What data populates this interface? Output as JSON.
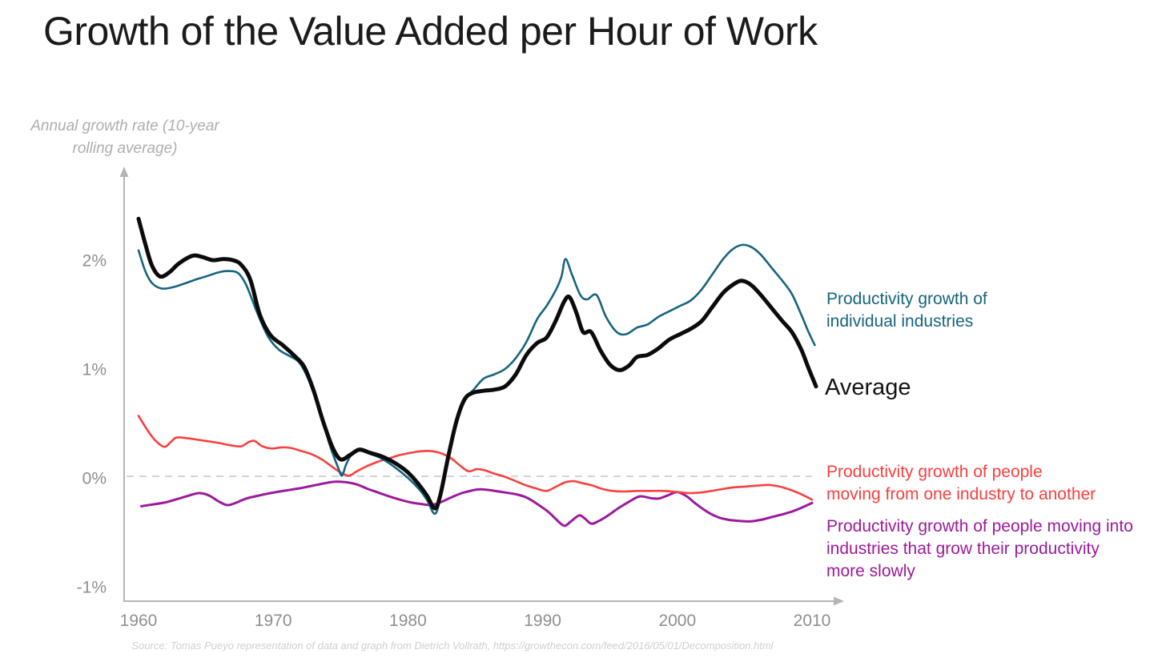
{
  "title": "Growth of the Value Added per Hour of Work",
  "y_axis_label": {
    "line1": "Annual growth rate (10-year",
    "line2": "rolling average)"
  },
  "legend": {
    "industries": {
      "line1": "Productivity growth of",
      "line2": "individual industries",
      "color": "#16647E"
    },
    "average": {
      "label": "Average",
      "color": "#141414"
    },
    "between_industries": {
      "line1": "Productivity growth of people",
      "line2": "moving from one industry to another",
      "color": "#F8403F"
    },
    "slower_industries": {
      "line1": "Productivity growth of people moving into",
      "line2": "industries that grow their productivity",
      "line3": "more slowly",
      "color": "#9C1A9C"
    }
  },
  "source": "Source: Tomas Pueyo representation of data and graph from Dietrich Vollrath, https://growthecon.com/feed/2016/05/01/Decomposition.html",
  "chart_data": {
    "type": "line",
    "title": "Growth of the Value Added per Hour of Work",
    "xlabel": "",
    "ylabel": "Annual growth rate (10-year rolling average)",
    "xlim": [
      1959,
      2012.5
    ],
    "ylim": [
      -1.15,
      2.85
    ],
    "grid": false,
    "zero_line_dashed": true,
    "legend_position": "right-of-line-ends",
    "axis_color": "#b5b5b5",
    "tick_color": "#8f8f8f",
    "x_ticks": [
      1960,
      1970,
      1980,
      1990,
      2000,
      2010
    ],
    "y_ticks": [
      {
        "value": 2,
        "label": "2%"
      },
      {
        "value": 1,
        "label": "1%"
      },
      {
        "value": 0,
        "label": "0%"
      },
      {
        "value": -1,
        "label": "-1%"
      }
    ],
    "series": [
      {
        "name": "Productivity growth of people moving into industries that grow their productivity more slowly",
        "color": "#9C1A9C",
        "width": 3,
        "points": [
          [
            1960.2,
            -0.26
          ],
          [
            1961,
            -0.245
          ],
          [
            1962,
            -0.225
          ],
          [
            1963,
            -0.19
          ],
          [
            1963.8,
            -0.16
          ],
          [
            1964.5,
            -0.14
          ],
          [
            1965.2,
            -0.16
          ],
          [
            1966,
            -0.22
          ],
          [
            1966.6,
            -0.25
          ],
          [
            1967.2,
            -0.23
          ],
          [
            1968,
            -0.19
          ],
          [
            1969,
            -0.16
          ],
          [
            1970,
            -0.135
          ],
          [
            1971,
            -0.115
          ],
          [
            1972,
            -0.095
          ],
          [
            1973,
            -0.07
          ],
          [
            1973.8,
            -0.05
          ],
          [
            1974.6,
            -0.035
          ],
          [
            1975.4,
            -0.04
          ],
          [
            1976.2,
            -0.06
          ],
          [
            1977,
            -0.1
          ],
          [
            1977.8,
            -0.135
          ],
          [
            1978.6,
            -0.17
          ],
          [
            1979.4,
            -0.2
          ],
          [
            1980.2,
            -0.225
          ],
          [
            1981,
            -0.24
          ],
          [
            1981.7,
            -0.25
          ],
          [
            1982.4,
            -0.225
          ],
          [
            1983.2,
            -0.18
          ],
          [
            1984,
            -0.14
          ],
          [
            1984.8,
            -0.115
          ],
          [
            1985.4,
            -0.105
          ],
          [
            1986.2,
            -0.115
          ],
          [
            1987,
            -0.13
          ],
          [
            1988,
            -0.15
          ],
          [
            1988.8,
            -0.18
          ],
          [
            1989.6,
            -0.24
          ],
          [
            1990.4,
            -0.31
          ],
          [
            1991,
            -0.38
          ],
          [
            1991.6,
            -0.44
          ],
          [
            1992.1,
            -0.4
          ],
          [
            1992.7,
            -0.345
          ],
          [
            1993.1,
            -0.37
          ],
          [
            1993.6,
            -0.42
          ],
          [
            1994.1,
            -0.4
          ],
          [
            1994.8,
            -0.35
          ],
          [
            1995.6,
            -0.28
          ],
          [
            1996.4,
            -0.22
          ],
          [
            1997.2,
            -0.17
          ],
          [
            1998,
            -0.185
          ],
          [
            1998.6,
            -0.19
          ],
          [
            1999.3,
            -0.16
          ],
          [
            2000,
            -0.13
          ],
          [
            2000.7,
            -0.17
          ],
          [
            2001.4,
            -0.24
          ],
          [
            2002.2,
            -0.31
          ],
          [
            2003,
            -0.36
          ],
          [
            2003.8,
            -0.385
          ],
          [
            2004.6,
            -0.395
          ],
          [
            2005.4,
            -0.4
          ],
          [
            2006.2,
            -0.385
          ],
          [
            2007,
            -0.36
          ],
          [
            2007.8,
            -0.335
          ],
          [
            2008.6,
            -0.305
          ],
          [
            2009.3,
            -0.27
          ],
          [
            2010,
            -0.23
          ]
        ]
      },
      {
        "name": "Productivity growth of people moving from one industry to another",
        "color": "#F8403F",
        "width": 2.6,
        "points": [
          [
            1960,
            0.57
          ],
          [
            1960.6,
            0.45
          ],
          [
            1961.2,
            0.35
          ],
          [
            1961.9,
            0.285
          ],
          [
            1962.4,
            0.33
          ],
          [
            1962.8,
            0.37
          ],
          [
            1963.6,
            0.365
          ],
          [
            1964.4,
            0.35
          ],
          [
            1965.2,
            0.335
          ],
          [
            1966,
            0.32
          ],
          [
            1966.8,
            0.3
          ],
          [
            1967.6,
            0.29
          ],
          [
            1968.2,
            0.33
          ],
          [
            1968.6,
            0.34
          ],
          [
            1969.2,
            0.29
          ],
          [
            1969.9,
            0.27
          ],
          [
            1970.6,
            0.28
          ],
          [
            1971.3,
            0.275
          ],
          [
            1972,
            0.25
          ],
          [
            1972.8,
            0.22
          ],
          [
            1973.6,
            0.17
          ],
          [
            1974.4,
            0.1
          ],
          [
            1975,
            0.05
          ],
          [
            1975.6,
            0.02
          ],
          [
            1976.2,
            0.06
          ],
          [
            1977,
            0.11
          ],
          [
            1977.8,
            0.15
          ],
          [
            1978.6,
            0.18
          ],
          [
            1979.4,
            0.21
          ],
          [
            1980.2,
            0.23
          ],
          [
            1981,
            0.245
          ],
          [
            1981.8,
            0.245
          ],
          [
            1982.6,
            0.22
          ],
          [
            1983.2,
            0.18
          ],
          [
            1983.9,
            0.11
          ],
          [
            1984.5,
            0.06
          ],
          [
            1985.1,
            0.08
          ],
          [
            1985.7,
            0.07
          ],
          [
            1986.4,
            0.04
          ],
          [
            1987.2,
            0.01
          ],
          [
            1988,
            -0.03
          ],
          [
            1988.8,
            -0.07
          ],
          [
            1989.6,
            -0.1
          ],
          [
            1990.3,
            -0.12
          ],
          [
            1991,
            -0.08
          ],
          [
            1991.7,
            -0.04
          ],
          [
            1992.3,
            -0.03
          ],
          [
            1993,
            -0.05
          ],
          [
            1993.7,
            -0.07
          ],
          [
            1994.4,
            -0.1
          ],
          [
            1995.2,
            -0.12
          ],
          [
            1996,
            -0.125
          ],
          [
            1997,
            -0.12
          ],
          [
            1998,
            -0.12
          ],
          [
            1999,
            -0.12
          ],
          [
            2000,
            -0.13
          ],
          [
            2001,
            -0.14
          ],
          [
            2002,
            -0.13
          ],
          [
            2003,
            -0.11
          ],
          [
            2004,
            -0.09
          ],
          [
            2005,
            -0.08
          ],
          [
            2006,
            -0.07
          ],
          [
            2006.8,
            -0.065
          ],
          [
            2007.6,
            -0.08
          ],
          [
            2008.4,
            -0.11
          ],
          [
            2009.2,
            -0.15
          ],
          [
            2010,
            -0.2
          ]
        ]
      },
      {
        "name": "Productivity growth of individual industries",
        "color": "#16647E",
        "width": 2.6,
        "points": [
          [
            1960,
            2.09
          ],
          [
            1960.5,
            1.9
          ],
          [
            1961,
            1.79
          ],
          [
            1961.7,
            1.74
          ],
          [
            1962.5,
            1.75
          ],
          [
            1963.3,
            1.78
          ],
          [
            1964.2,
            1.82
          ],
          [
            1965,
            1.85
          ],
          [
            1966,
            1.89
          ],
          [
            1966.7,
            1.9
          ],
          [
            1967.4,
            1.88
          ],
          [
            1968,
            1.77
          ],
          [
            1968.8,
            1.52
          ],
          [
            1969.6,
            1.3
          ],
          [
            1970.4,
            1.18
          ],
          [
            1971.2,
            1.12
          ],
          [
            1972,
            1.05
          ],
          [
            1972.8,
            0.85
          ],
          [
            1973.5,
            0.6
          ],
          [
            1974.2,
            0.3
          ],
          [
            1974.8,
            0.1
          ],
          [
            1975.1,
            0.02
          ],
          [
            1975.4,
            0.12
          ],
          [
            1975.8,
            0.21
          ],
          [
            1976.4,
            0.25
          ],
          [
            1977.2,
            0.22
          ],
          [
            1978,
            0.18
          ],
          [
            1979,
            0.1
          ],
          [
            1980,
            0.0
          ],
          [
            1980.8,
            -0.1
          ],
          [
            1981.4,
            -0.2
          ],
          [
            1982,
            -0.33
          ],
          [
            1982.4,
            -0.18
          ],
          [
            1983,
            0.22
          ],
          [
            1983.6,
            0.55
          ],
          [
            1984.2,
            0.73
          ],
          [
            1984.8,
            0.8
          ],
          [
            1985.6,
            0.91
          ],
          [
            1986.4,
            0.95
          ],
          [
            1987.2,
            1.0
          ],
          [
            1988,
            1.1
          ],
          [
            1988.8,
            1.25
          ],
          [
            1989.6,
            1.46
          ],
          [
            1990.3,
            1.58
          ],
          [
            1991,
            1.73
          ],
          [
            1991.4,
            1.85
          ],
          [
            1991.7,
            2.01
          ],
          [
            1992.2,
            1.86
          ],
          [
            1992.8,
            1.68
          ],
          [
            1993.3,
            1.64
          ],
          [
            1994,
            1.68
          ],
          [
            1994.7,
            1.48
          ],
          [
            1995.5,
            1.34
          ],
          [
            1996.2,
            1.32
          ],
          [
            1997,
            1.38
          ],
          [
            1997.8,
            1.41
          ],
          [
            1998.6,
            1.48
          ],
          [
            1999.4,
            1.53
          ],
          [
            2000.2,
            1.58
          ],
          [
            2001,
            1.63
          ],
          [
            2001.8,
            1.73
          ],
          [
            2002.6,
            1.87
          ],
          [
            2003.4,
            2.01
          ],
          [
            2004.1,
            2.1
          ],
          [
            2004.8,
            2.14
          ],
          [
            2005.5,
            2.12
          ],
          [
            2006.2,
            2.05
          ],
          [
            2007,
            1.93
          ],
          [
            2007.8,
            1.81
          ],
          [
            2008.5,
            1.69
          ],
          [
            2009.2,
            1.5
          ],
          [
            2009.7,
            1.35
          ],
          [
            2010.2,
            1.22
          ]
        ]
      },
      {
        "name": "Average",
        "color": "#0b0b0b",
        "width": 5,
        "points": [
          [
            1960,
            2.38
          ],
          [
            1960.5,
            2.15
          ],
          [
            1961,
            1.95
          ],
          [
            1961.6,
            1.85
          ],
          [
            1962.3,
            1.89
          ],
          [
            1963,
            1.97
          ],
          [
            1964,
            2.04
          ],
          [
            1964.7,
            2.03
          ],
          [
            1965.5,
            2.0
          ],
          [
            1966.3,
            2.01
          ],
          [
            1967,
            2.0
          ],
          [
            1967.6,
            1.96
          ],
          [
            1968.3,
            1.82
          ],
          [
            1969,
            1.5
          ],
          [
            1969.8,
            1.31
          ],
          [
            1970.7,
            1.22
          ],
          [
            1971.5,
            1.13
          ],
          [
            1972.3,
            1.02
          ],
          [
            1973,
            0.8
          ],
          [
            1973.7,
            0.52
          ],
          [
            1974.4,
            0.28
          ],
          [
            1975,
            0.17
          ],
          [
            1975.7,
            0.21
          ],
          [
            1976.4,
            0.26
          ],
          [
            1977.2,
            0.23
          ],
          [
            1978,
            0.2
          ],
          [
            1979,
            0.14
          ],
          [
            1980,
            0.05
          ],
          [
            1980.8,
            -0.06
          ],
          [
            1981.4,
            -0.16
          ],
          [
            1982,
            -0.28
          ],
          [
            1982.4,
            -0.16
          ],
          [
            1983,
            0.2
          ],
          [
            1983.6,
            0.52
          ],
          [
            1984.2,
            0.72
          ],
          [
            1984.8,
            0.78
          ],
          [
            1985.6,
            0.8
          ],
          [
            1986.4,
            0.81
          ],
          [
            1987.2,
            0.84
          ],
          [
            1988,
            0.95
          ],
          [
            1988.8,
            1.13
          ],
          [
            1989.6,
            1.24
          ],
          [
            1990.3,
            1.29
          ],
          [
            1991,
            1.45
          ],
          [
            1991.6,
            1.62
          ],
          [
            1992,
            1.66
          ],
          [
            1992.5,
            1.52
          ],
          [
            1993,
            1.34
          ],
          [
            1993.6,
            1.34
          ],
          [
            1994.3,
            1.17
          ],
          [
            1995,
            1.04
          ],
          [
            1995.7,
            0.99
          ],
          [
            1996.4,
            1.03
          ],
          [
            1997,
            1.11
          ],
          [
            1997.8,
            1.13
          ],
          [
            1998.6,
            1.19
          ],
          [
            1999.4,
            1.27
          ],
          [
            2000.2,
            1.32
          ],
          [
            2001,
            1.37
          ],
          [
            2001.8,
            1.44
          ],
          [
            2002.6,
            1.57
          ],
          [
            2003.4,
            1.7
          ],
          [
            2004.2,
            1.78
          ],
          [
            2004.8,
            1.81
          ],
          [
            2005.5,
            1.77
          ],
          [
            2006.2,
            1.68
          ],
          [
            2007,
            1.56
          ],
          [
            2007.8,
            1.44
          ],
          [
            2008.5,
            1.34
          ],
          [
            2009.2,
            1.18
          ],
          [
            2009.7,
            1.02
          ],
          [
            2010.3,
            0.84
          ]
        ]
      }
    ]
  }
}
